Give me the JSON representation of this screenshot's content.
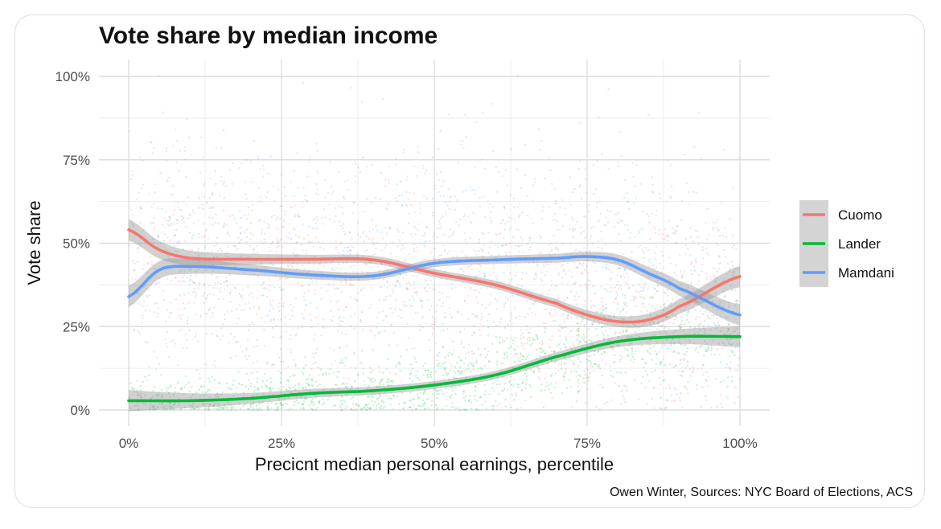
{
  "chart_data": {
    "type": "scatter",
    "title": "Vote share by median income",
    "xlabel": "Precicnt median personal earnings, percentile",
    "ylabel": "Vote share",
    "caption": "Owen Winter, Sources: NYC Board of Elections, ACS",
    "xlim": [
      0,
      1
    ],
    "ylim": [
      0,
      1
    ],
    "x_ticks": [
      {
        "value": 0,
        "label": "0%"
      },
      {
        "value": 0.25,
        "label": "25%"
      },
      {
        "value": 0.5,
        "label": "50%"
      },
      {
        "value": 0.75,
        "label": "75%"
      },
      {
        "value": 1,
        "label": "100%"
      }
    ],
    "y_ticks": [
      {
        "value": 0,
        "label": "0%"
      },
      {
        "value": 0.25,
        "label": "25%"
      },
      {
        "value": 0.5,
        "label": "50%"
      },
      {
        "value": 0.75,
        "label": "75%"
      },
      {
        "value": 1,
        "label": "100%"
      }
    ],
    "grid": true,
    "legend_position": "right",
    "series": [
      {
        "name": "Cuomo",
        "color": "#f8766d",
        "trend": {
          "x": [
            0,
            0.05,
            0.1,
            0.2,
            0.3,
            0.4,
            0.5,
            0.6,
            0.7,
            0.75,
            0.8,
            0.85,
            0.9,
            1.0
          ],
          "y": [
            0.54,
            0.48,
            0.455,
            0.452,
            0.452,
            0.45,
            0.41,
            0.375,
            0.32,
            0.285,
            0.265,
            0.27,
            0.31,
            0.4
          ]
        }
      },
      {
        "name": "Lander",
        "color": "#00ba38",
        "trend": {
          "x": [
            0,
            0.1,
            0.2,
            0.3,
            0.4,
            0.5,
            0.6,
            0.7,
            0.8,
            0.9,
            1.0
          ],
          "y": [
            0.028,
            0.028,
            0.035,
            0.05,
            0.058,
            0.075,
            0.105,
            0.16,
            0.205,
            0.22,
            0.22
          ]
        }
      },
      {
        "name": "Mamdani",
        "color": "#619cff",
        "trend": {
          "x": [
            0,
            0.05,
            0.1,
            0.2,
            0.3,
            0.4,
            0.5,
            0.6,
            0.7,
            0.75,
            0.8,
            0.85,
            0.9,
            1.0
          ],
          "y": [
            0.34,
            0.42,
            0.43,
            0.42,
            0.405,
            0.402,
            0.44,
            0.45,
            0.455,
            0.46,
            0.45,
            0.41,
            0.365,
            0.285
          ]
        }
      }
    ]
  }
}
